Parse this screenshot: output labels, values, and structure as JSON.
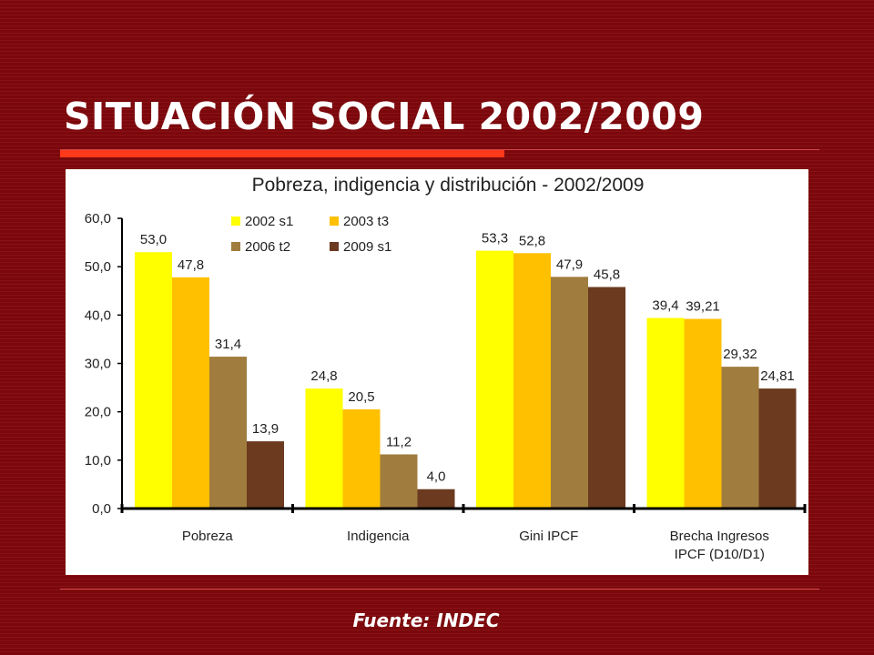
{
  "slide": {
    "title": "SITUACIÓN SOCIAL 2002/2009",
    "source": "Fuente: INDEC"
  },
  "colors": {
    "background": "#7d0a0e",
    "accent": "#ff3a1a",
    "series": [
      "#ffff00",
      "#ffc000",
      "#a07c3e",
      "#6b3a1f"
    ]
  },
  "chart_data": {
    "type": "bar",
    "title": "Pobreza, indigencia y distribución - 2002/2009",
    "categories": [
      "Pobreza",
      "Indigencia",
      "Gini IPCF",
      "Brecha Ingresos IPCF (D10/D1)"
    ],
    "category_lines": [
      [
        "Pobreza"
      ],
      [
        "Indigencia"
      ],
      [
        "Gini IPCF"
      ],
      [
        "Brecha Ingresos",
        "IPCF (D10/D1)"
      ]
    ],
    "series": [
      {
        "name": "2002 s1",
        "values": [
          53.0,
          24.8,
          53.3,
          39.4
        ],
        "labels": [
          "53,0",
          "24,8",
          "53,3",
          "39,4"
        ]
      },
      {
        "name": "2003 t3",
        "values": [
          47.8,
          20.5,
          52.8,
          39.21
        ],
        "labels": [
          "47,8",
          "20,5",
          "52,8",
          "39,21"
        ]
      },
      {
        "name": "2006 t2",
        "values": [
          31.4,
          11.2,
          47.9,
          29.32
        ],
        "labels": [
          "31,4",
          "11,2",
          "47,9",
          "29,32"
        ]
      },
      {
        "name": "2009 s1",
        "values": [
          13.9,
          4.0,
          45.8,
          24.81
        ],
        "labels": [
          "13,9",
          "4,0",
          "45,8",
          "24,81"
        ]
      }
    ],
    "ylim": [
      0,
      60
    ],
    "yticks": [
      "0,0",
      "10,0",
      "20,0",
      "30,0",
      "40,0",
      "50,0",
      "60,0"
    ],
    "legend_position": "top-left",
    "grid": false
  }
}
